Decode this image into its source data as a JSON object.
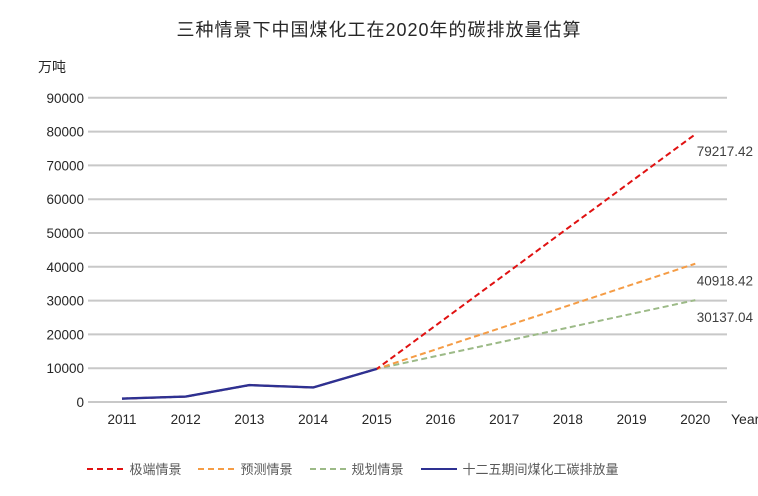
{
  "chart_data": {
    "type": "line",
    "title": "三种情景下中国煤化工在2020年的碳排放量估算",
    "ylabel": "万吨",
    "xlabel": "Year",
    "x": [
      "2011",
      "2012",
      "2013",
      "2014",
      "2015",
      "2016",
      "2017",
      "2018",
      "2019",
      "2020"
    ],
    "ylim": [
      0,
      90000
    ],
    "yticks": [
      0,
      10000,
      20000,
      30000,
      40000,
      50000,
      60000,
      70000,
      80000,
      90000
    ],
    "grid": "horizontal",
    "legend_position": "bottom",
    "colors": {
      "grid": "#c8c8c8",
      "tick_text": "#262626",
      "axis_label_text": "#262626",
      "data_label_text": "#3f3f3f"
    },
    "series": [
      {
        "id": "extreme",
        "name": "极端情景",
        "color": "#e01111",
        "style": "dashed",
        "values": [
          1000,
          1600,
          5000,
          4300,
          9800,
          null,
          null,
          null,
          null,
          79217.42
        ],
        "end_label": "79217.42"
      },
      {
        "id": "forecast",
        "name": "预测情景",
        "color": "#f59c45",
        "style": "dashed",
        "values": [
          1000,
          1600,
          5000,
          4300,
          9800,
          null,
          null,
          null,
          null,
          40918.42
        ],
        "end_label": "40918.42"
      },
      {
        "id": "planning",
        "name": "规划情景",
        "color": "#9cba87",
        "style": "dashed",
        "values": [
          1000,
          1600,
          5000,
          4300,
          9800,
          null,
          null,
          null,
          null,
          30137.04
        ],
        "end_label": "30137.04"
      },
      {
        "id": "historical",
        "name": "十二五期间煤化工碳排放量",
        "color": "#2e3192",
        "style": "solid",
        "values": [
          1000,
          1600,
          5000,
          4300,
          9800,
          null,
          null,
          null,
          null,
          null
        ],
        "end_label": null
      }
    ]
  }
}
